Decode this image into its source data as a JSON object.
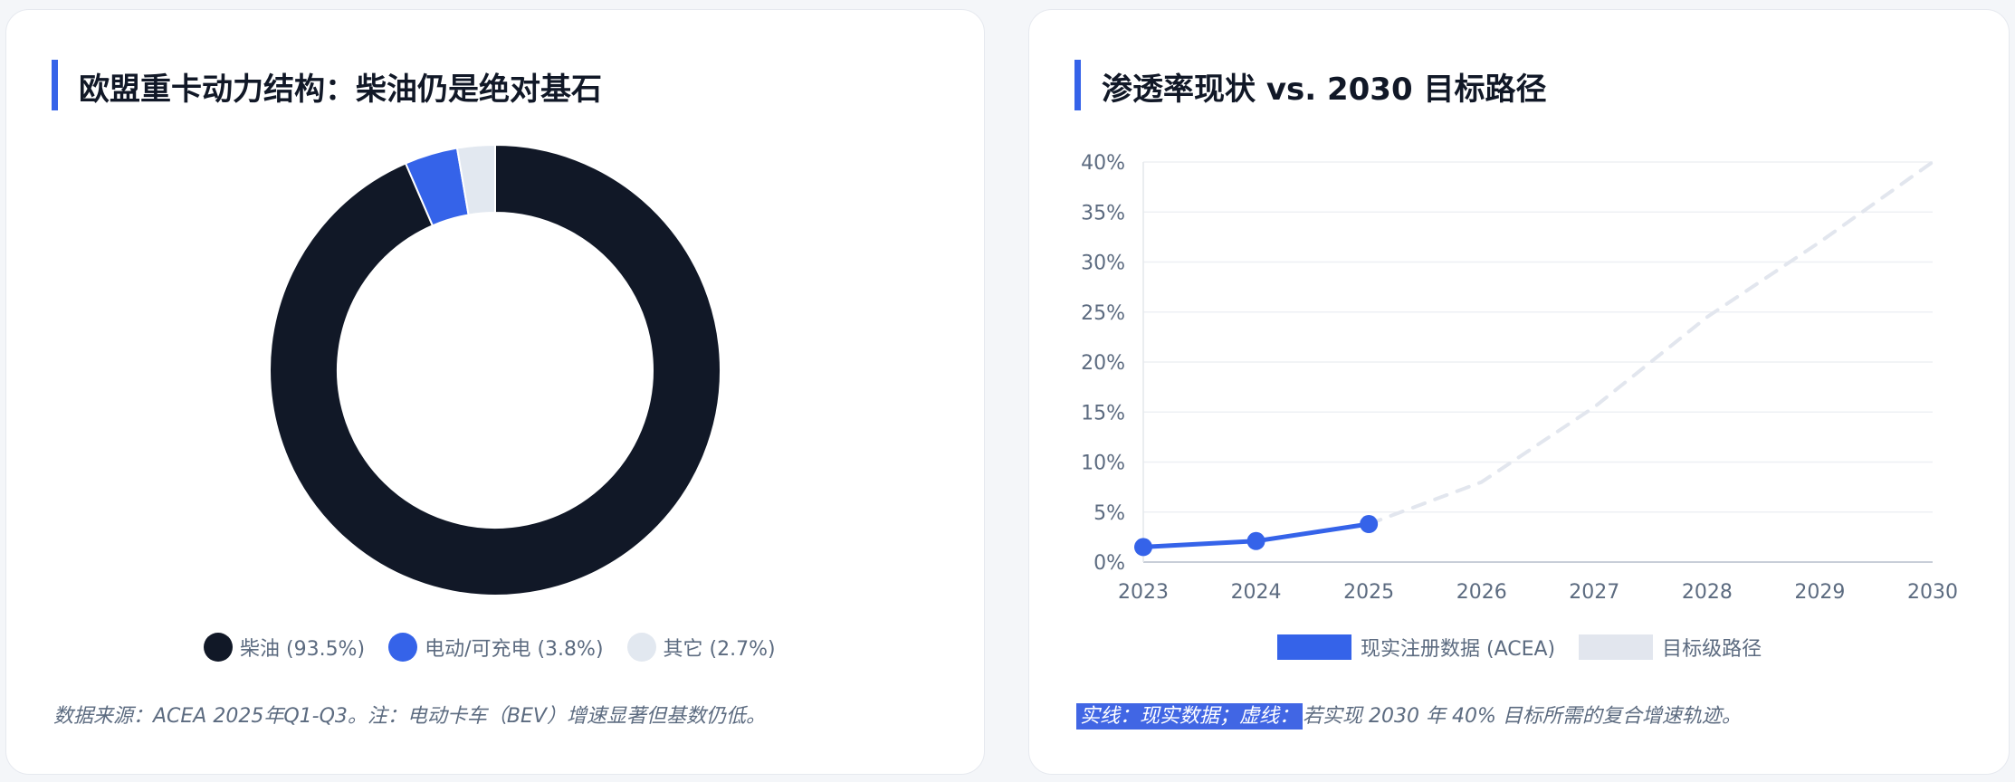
{
  "left_card": {
    "title": "欧盟重卡动力结构：柴油仍是绝对基石",
    "footnote": "数据来源：ACEA 2025年Q1-Q3。注：电动卡车（BEV）增速显著但基数仍低。"
  },
  "right_card": {
    "title": "渗透率现状 vs. 2030 目标路径",
    "footnote_highlight": "实线：现实数据；虚线：",
    "footnote_rest": "若实现 2030 年 40% 目标所需的复合增速轨迹。"
  },
  "chart_data": [
    {
      "type": "pie",
      "title": "",
      "donut": true,
      "legend_position": "bottom",
      "slices": [
        {
          "label": "柴油 (93.5%)",
          "value": 93.5,
          "color": "#111827"
        },
        {
          "label": "电动/可充电 (3.8%)",
          "value": 3.8,
          "color": "#3563e9"
        },
        {
          "label": "其它 (2.7%)",
          "value": 2.7,
          "color": "#e2e8f0"
        }
      ]
    },
    {
      "type": "line",
      "title": "",
      "x": [
        "2023",
        "2024",
        "2025",
        "2026",
        "2027",
        "2028",
        "2029",
        "2030"
      ],
      "ylim": [
        0,
        40
      ],
      "yticks": [
        "0%",
        "5%",
        "10%",
        "15%",
        "20%",
        "25%",
        "30%",
        "35%",
        "40%"
      ],
      "grid": true,
      "legend_position": "bottom",
      "series": [
        {
          "name": "现实注册数据 (ACEA)",
          "x": [
            "2023",
            "2024",
            "2025"
          ],
          "values": [
            1.5,
            2.1,
            3.8
          ],
          "color": "#3563e9",
          "style": "solid"
        },
        {
          "name": "目标级路径",
          "x": [
            "2025",
            "2026",
            "2027",
            "2028",
            "2029",
            "2030"
          ],
          "values": [
            3.8,
            8,
            15.5,
            24.5,
            32,
            40
          ],
          "color": "#e2e6ee",
          "style": "dashed"
        }
      ]
    }
  ]
}
